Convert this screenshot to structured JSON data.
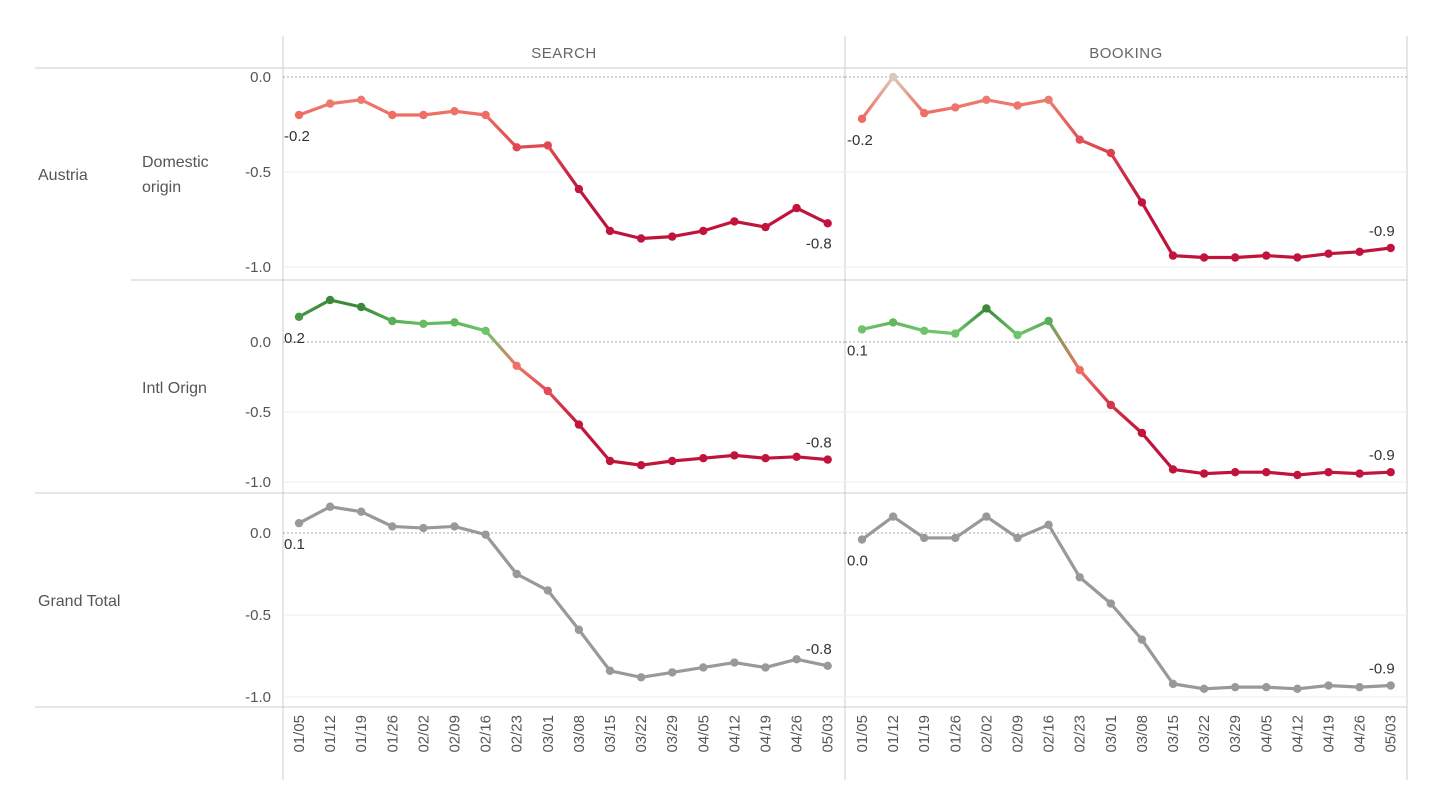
{
  "columns": [
    {
      "key": "search",
      "label": "SEARCH"
    },
    {
      "key": "booking",
      "label": "BOOKING"
    }
  ],
  "row_labels": {
    "austria": "Austria",
    "domestic_line1": "Domestic",
    "domestic_line2": "origin",
    "intl": "Intl Orign",
    "grand_total": "Grand Total"
  },
  "chart_data": {
    "type": "line",
    "x": [
      "01/05",
      "01/12",
      "01/19",
      "01/26",
      "02/02",
      "02/09",
      "02/16",
      "02/23",
      "03/01",
      "03/08",
      "03/15",
      "03/22",
      "03/29",
      "04/05",
      "04/12",
      "04/19",
      "04/26",
      "05/03"
    ],
    "y_ticks": [
      "0.0",
      "-0.5",
      "-1.0"
    ],
    "colors": {
      "positive_dark": "#3a8a3a",
      "positive_light": "#6ec46a",
      "neutral": "#d9cbb8",
      "negative_light": "#f06a60",
      "negative_dark": "#c0143c",
      "grand_total": "#999999"
    },
    "panels": [
      {
        "row": "domestic",
        "column": "search",
        "ylim": [
          -1.0,
          0.0
        ],
        "values": [
          -0.2,
          -0.14,
          -0.12,
          -0.2,
          -0.2,
          -0.18,
          -0.2,
          -0.37,
          -0.36,
          -0.59,
          -0.81,
          -0.85,
          -0.84,
          -0.81,
          -0.76,
          -0.79,
          -0.69,
          -0.77
        ],
        "first_label": "-0.2",
        "last_label": "-0.8"
      },
      {
        "row": "domestic",
        "column": "booking",
        "ylim": [
          -1.0,
          0.0
        ],
        "values": [
          -0.22,
          0.0,
          -0.19,
          -0.16,
          -0.12,
          -0.15,
          -0.12,
          -0.33,
          -0.4,
          -0.66,
          -0.94,
          -0.95,
          -0.95,
          -0.94,
          -0.95,
          -0.93,
          -0.92,
          -0.9
        ],
        "first_label": "-0.2",
        "last_label": "-0.9"
      },
      {
        "row": "intl",
        "column": "search",
        "ylim": [
          -1.0,
          0.3
        ],
        "values": [
          0.18,
          0.3,
          0.25,
          0.15,
          0.13,
          0.14,
          0.08,
          -0.17,
          -0.35,
          -0.59,
          -0.85,
          -0.88,
          -0.85,
          -0.83,
          -0.81,
          -0.83,
          -0.82,
          -0.84
        ],
        "first_label": "0.2",
        "last_label": "-0.8"
      },
      {
        "row": "intl",
        "column": "booking",
        "ylim": [
          -1.0,
          0.3
        ],
        "values": [
          0.09,
          0.14,
          0.08,
          0.06,
          0.24,
          0.05,
          0.15,
          -0.2,
          -0.45,
          -0.65,
          -0.91,
          -0.94,
          -0.93,
          -0.93,
          -0.95,
          -0.93,
          -0.94,
          -0.93
        ],
        "first_label": "0.1",
        "last_label": "-0.9"
      },
      {
        "row": "grand_total",
        "column": "search",
        "ylim": [
          -1.0,
          0.15
        ],
        "values": [
          0.06,
          0.16,
          0.13,
          0.04,
          0.03,
          0.04,
          -0.01,
          -0.25,
          -0.35,
          -0.59,
          -0.84,
          -0.88,
          -0.85,
          -0.82,
          -0.79,
          -0.82,
          -0.77,
          -0.81
        ],
        "first_label": "0.1",
        "last_label": "-0.8"
      },
      {
        "row": "grand_total",
        "column": "booking",
        "ylim": [
          -1.0,
          0.15
        ],
        "values": [
          -0.04,
          0.1,
          -0.03,
          -0.03,
          0.1,
          -0.03,
          0.05,
          -0.27,
          -0.43,
          -0.65,
          -0.92,
          -0.95,
          -0.94,
          -0.94,
          -0.95,
          -0.93,
          -0.94,
          -0.93
        ],
        "first_label": "0.0",
        "last_label": "-0.9"
      }
    ]
  }
}
